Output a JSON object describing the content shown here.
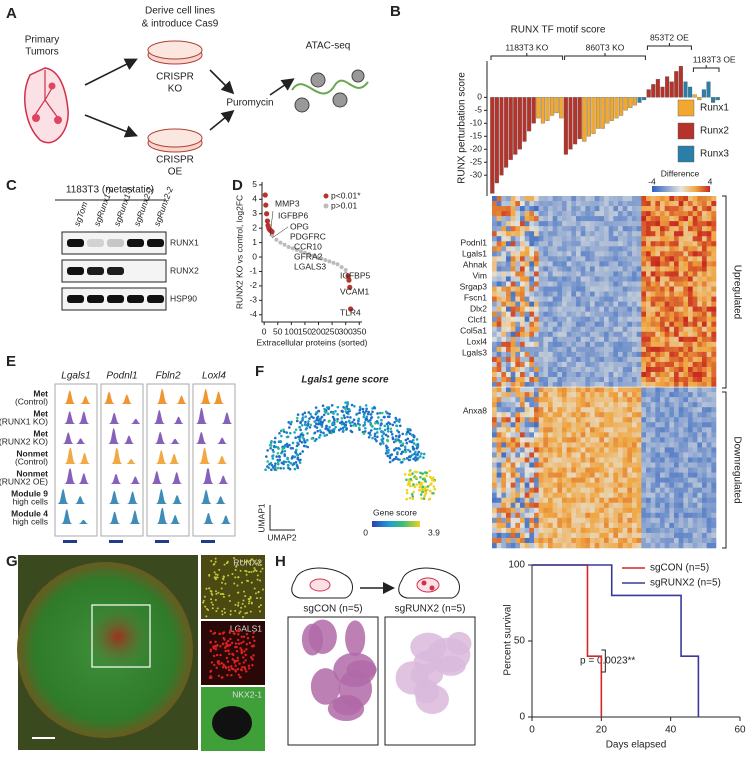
{
  "panel_labels": [
    "A",
    "B",
    "C",
    "D",
    "E",
    "F",
    "G",
    "H"
  ],
  "panel_a": {
    "primary_tumors": [
      "Primary",
      "Tumors"
    ],
    "derive": [
      "Derive cell lines",
      "& introduce Cas9"
    ],
    "ko": [
      "CRISPR",
      "KO"
    ],
    "oe": [
      "CRISPR",
      "OE"
    ],
    "puromycin": "Puromycin",
    "atac": "ATAC-seq"
  },
  "panel_b_heatmap": {
    "legend_title": "Difference",
    "scale": [
      -4,
      4
    ],
    "genes": [
      "Podnl1",
      "Lgals1",
      "Ahnak",
      "Vim",
      "Srgap3",
      "Fscn1",
      "Dlx2",
      "Clcf1",
      "Col5a1",
      "Loxl4",
      "Lgals3"
    ],
    "gene_low": "Anxa8",
    "row_groups": [
      "Upregulated",
      "Downregulated"
    ]
  },
  "panel_c": {
    "title": "1183T3 (metastatic)",
    "lanes": [
      "sgTom",
      "sgRunx1-2",
      "sgRunx1-1",
      "sgRunx2-1",
      "sgRunx2-2"
    ],
    "proteins": [
      "RUNX1",
      "RUNX2",
      "HSP90"
    ]
  },
  "panel_e": {
    "genes": [
      "Lgals1",
      "Podnl1",
      "Fbln2",
      "Loxl4"
    ],
    "tracks": [
      [
        "Met",
        "(Control)"
      ],
      [
        "Met",
        "(RUNX1 KO)"
      ],
      [
        "Met",
        "(RUNX2 KO)"
      ],
      [
        "Nonmet",
        "(Control)"
      ],
      [
        "Nonmet",
        "(RUNX2 OE)"
      ],
      [
        "Module 9",
        "high cells"
      ],
      [
        "Module 4",
        "high cells"
      ]
    ]
  },
  "panel_f": {
    "title": "Lgals1 gene score",
    "x_label": "UMAP2",
    "y_label": "UMAP1",
    "legend_title": "Gene score",
    "scale": [
      0,
      3.9
    ]
  },
  "panel_g": {
    "labels": [
      "RUNX2",
      "LGALS1",
      "NKX2-1"
    ]
  },
  "panel_h": {
    "groups": [
      "sgCON (n=5)",
      "sgRUNX2 (n=5)"
    ]
  },
  "chart_data": [
    {
      "type": "bar",
      "title": "RUNX TF motif score",
      "y_label": "RUNX perturbation score",
      "groups": [
        "1183T3 KO",
        "860T3 KO",
        "853T2 OE",
        "1183T3 OE"
      ],
      "ylim": [
        -38,
        14
      ],
      "yticks": [
        0,
        -5,
        -10,
        -15,
        -20,
        -25,
        -30
      ],
      "legend": "right",
      "series": [
        {
          "name": "Runx1",
          "color": "#f0a830",
          "values": [
            null,
            null,
            null,
            null,
            null,
            null,
            null,
            null,
            null,
            null,
            -8,
            -10,
            -9,
            -7,
            -6,
            -8,
            null,
            null,
            null,
            null,
            -17,
            -15,
            -14,
            -12,
            -12,
            -10,
            -9,
            -8,
            -7,
            -5,
            -4,
            -3,
            null,
            null,
            null,
            null,
            null,
            null,
            null,
            null,
            null,
            null,
            null,
            null,
            1,
            -1,
            null,
            null,
            null,
            null
          ]
        },
        {
          "name": "Runx2",
          "color": "#b5332a",
          "values": [
            -37,
            -33,
            -30,
            -27,
            -24,
            -22,
            -20,
            -17,
            -13,
            -10,
            null,
            null,
            null,
            null,
            null,
            null,
            -22,
            -20,
            -18,
            -16,
            null,
            null,
            null,
            null,
            null,
            null,
            null,
            null,
            null,
            null,
            null,
            null,
            null,
            null,
            3,
            5,
            7,
            4,
            8,
            6,
            10,
            12,
            null,
            null,
            null,
            null,
            null,
            null,
            null,
            null
          ]
        },
        {
          "name": "Runx3",
          "color": "#2a7fa8",
          "values": [
            null,
            null,
            null,
            null,
            null,
            null,
            null,
            null,
            null,
            null,
            null,
            null,
            null,
            null,
            null,
            null,
            null,
            null,
            null,
            null,
            null,
            null,
            null,
            null,
            null,
            null,
            null,
            null,
            null,
            null,
            null,
            null,
            -2,
            -1,
            null,
            null,
            null,
            null,
            null,
            null,
            null,
            null,
            6,
            4,
            null,
            null,
            3,
            6,
            -2,
            -1
          ]
        }
      ]
    },
    {
      "type": "scatter",
      "x_label": "Extracellular proteins (sorted)",
      "y_label": "RUNX2 KO vs control, log2FC",
      "xlim": [
        -8,
        360
      ],
      "ylim": [
        -4.5,
        5.2
      ],
      "xticks": [
        0,
        50,
        100,
        150,
        200,
        250,
        300,
        350
      ],
      "yticks": [
        -4,
        -3,
        -2,
        -1,
        0,
        1,
        2,
        3,
        4,
        5
      ],
      "legend": "top-right",
      "series": [
        {
          "name": "p<0.01*",
          "color": "#b5332a",
          "x": [
            4,
            6,
            9,
            12,
            14,
            17,
            20,
            23,
            26,
            29,
            309,
            312,
            315,
            318
          ],
          "y": [
            4.3,
            3.6,
            3.0,
            2.5,
            2.2,
            2.0,
            1.9,
            1.85,
            1.8,
            1.75,
            -1.3,
            -1.6,
            -2.1,
            -3.6
          ]
        },
        {
          "name": "p>0.01",
          "color": "#bbbbbb",
          "x": [
            30,
            45,
            60,
            75,
            90,
            105,
            120,
            135,
            150,
            165,
            180,
            195,
            210,
            225,
            240,
            255,
            270,
            285,
            300
          ],
          "y": [
            1.5,
            1.2,
            1.0,
            0.85,
            0.7,
            0.6,
            0.5,
            0.4,
            0.3,
            0.2,
            0.1,
            0.0,
            -0.1,
            -0.2,
            -0.3,
            -0.4,
            -0.5,
            -0.7,
            -0.9
          ]
        }
      ],
      "annotations": [
        "MMP3",
        "IGFBP6",
        "OPG",
        "PDGFRC",
        "CCR10",
        "GFRA2",
        "LGALS3",
        "IGFBP5",
        "VCAM1",
        "TLR4"
      ]
    },
    {
      "type": "line",
      "x_label": "Days elapsed",
      "y_label": "Percent survival",
      "xlim": [
        0,
        60
      ],
      "ylim": [
        0,
        100
      ],
      "xticks": [
        0,
        20,
        40,
        60
      ],
      "yticks": [
        0,
        50,
        100
      ],
      "legend": "top-right",
      "annotation": "p = 0.0023**",
      "series": [
        {
          "name": "sgCON (n=5)",
          "color": "#d62728",
          "x": [
            0,
            16,
            16,
            20,
            20
          ],
          "y": [
            100,
            100,
            40,
            40,
            0
          ]
        },
        {
          "name": "sgRUNX2 (n=5)",
          "color": "#3a3a9a",
          "x": [
            0,
            23,
            23,
            43,
            43,
            48,
            48
          ],
          "y": [
            100,
            100,
            80,
            80,
            40,
            40,
            0
          ]
        }
      ]
    }
  ]
}
